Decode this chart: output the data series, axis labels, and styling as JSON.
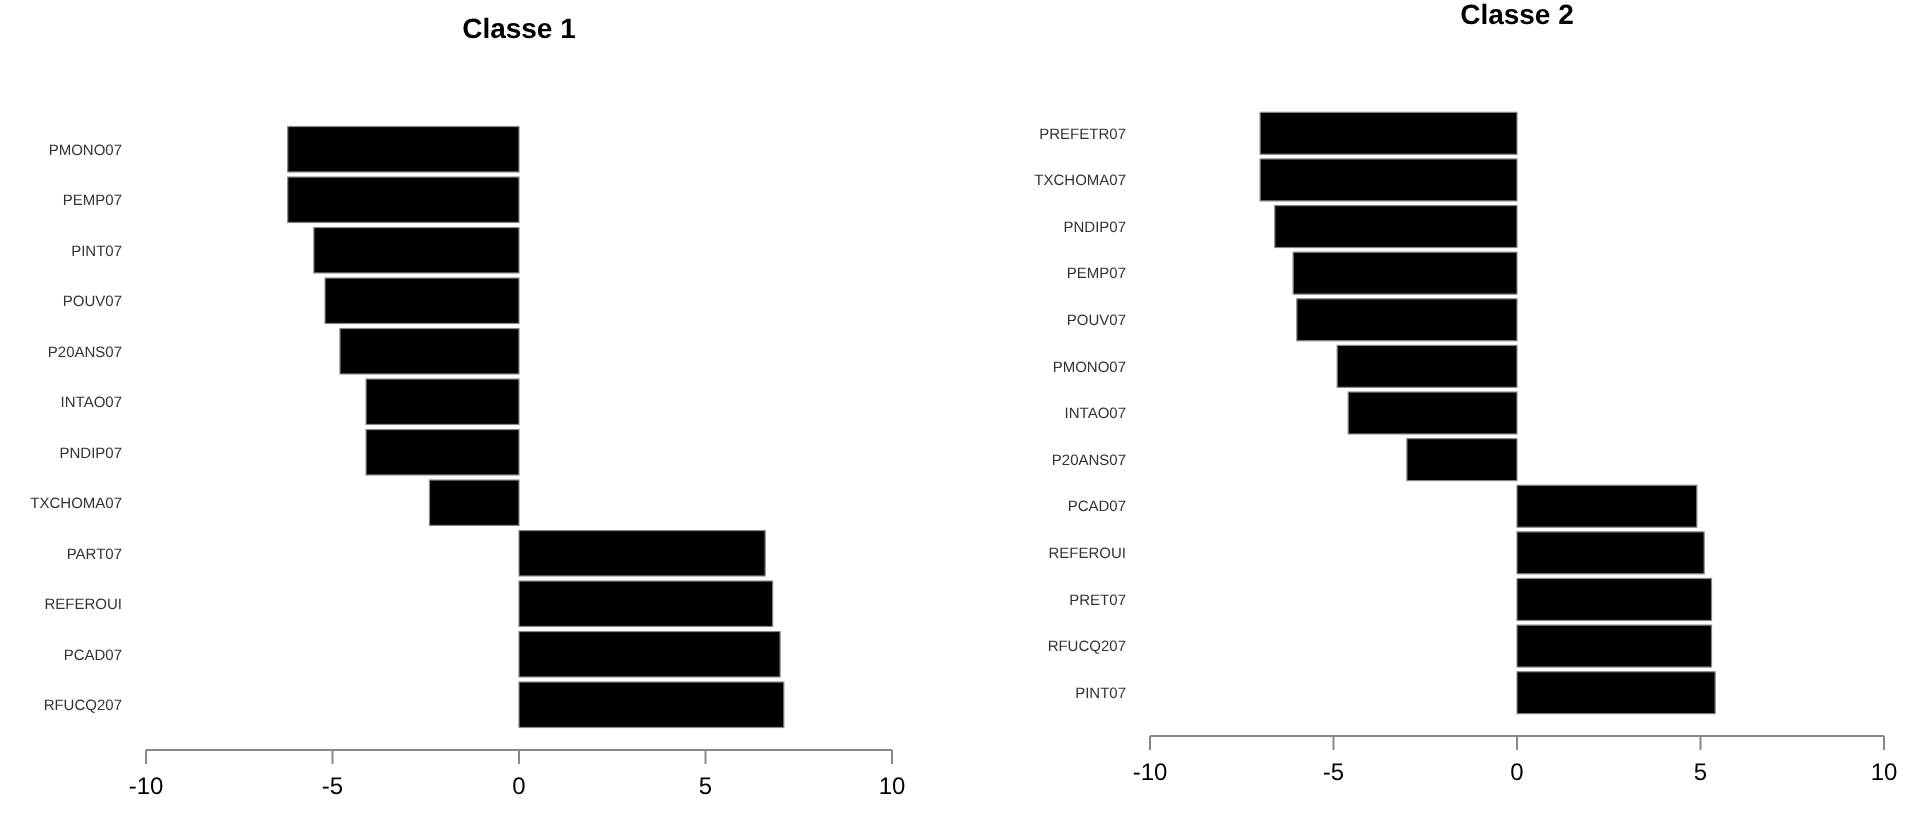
{
  "chart_data": [
    {
      "type": "bar",
      "orientation": "horizontal",
      "title": "Classe 1",
      "categories": [
        "PMONO07",
        "PEMP07",
        "PINT07",
        "POUV07",
        "P20ANS07",
        "INTAO07",
        "PNDIP07",
        "TXCHOMA07",
        "PART07",
        "REFEROUI",
        "PCAD07",
        "RFUCQ207"
      ],
      "values": [
        -6.2,
        -6.2,
        -5.5,
        -5.2,
        -4.8,
        -4.1,
        -4.1,
        -2.4,
        6.6,
        6.8,
        7.0,
        7.1
      ],
      "color": "#000000",
      "xlim": [
        -10,
        10
      ],
      "xticks": [
        -10,
        -5,
        0,
        5,
        10
      ],
      "grid": false
    },
    {
      "type": "bar",
      "orientation": "horizontal",
      "title": "Classe 2",
      "categories": [
        "PREFETR07",
        "TXCHOMA07",
        "PNDIP07",
        "PEMP07",
        "POUV07",
        "PMONO07",
        "INTAO07",
        "P20ANS07",
        "PCAD07",
        "REFEROUI",
        "PRET07",
        "RFUCQ207",
        "PINT07"
      ],
      "values": [
        -7.0,
        -7.0,
        -6.6,
        -6.1,
        -6.0,
        -4.9,
        -4.6,
        -3.0,
        4.9,
        5.1,
        5.3,
        5.3,
        5.4
      ],
      "color": "#000000",
      "xlim": [
        -10,
        10
      ],
      "xticks": [
        -10,
        -5,
        0,
        5,
        10
      ],
      "grid": false
    }
  ]
}
